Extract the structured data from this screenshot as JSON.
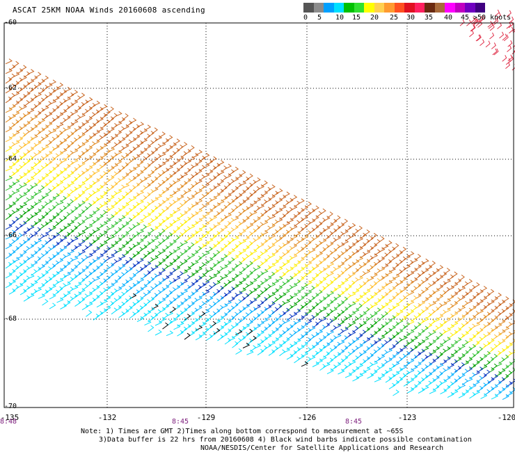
{
  "title": "ASCAT 25KM NOAA Winds 20160608 ascending",
  "colorbar": {
    "colors": [
      "#555555",
      "#8c8c8c",
      "#00a0ff",
      "#00e0ff",
      "#00c000",
      "#30e030",
      "#ffff00",
      "#ffd050",
      "#ff9a30",
      "#ff5020",
      "#e01020",
      "#ff2060",
      "#6a2a10",
      "#a86a3a",
      "#ff00ff",
      "#c000c0",
      "#7000c0",
      "#400080"
    ],
    "labels": [
      "0",
      "5",
      "10",
      "15",
      "20",
      "25",
      "30",
      "35",
      "40",
      "45",
      ">50 knots"
    ]
  },
  "lat_labels": [
    "-60",
    "-62",
    "-64",
    "-66",
    "-68",
    "-70"
  ],
  "lon_labels": [
    "-135",
    "-132",
    "-129",
    "-126",
    "-123",
    "-120"
  ],
  "time_labels": [
    "8:48",
    "8:45",
    "8:45"
  ],
  "note": {
    "line1": "Note: 1) Times are GMT 2)Times along bottom correspond to measurement at ~65S",
    "line2": "3)Data buffer is 22 hrs from 20160608 4) Black wind barbs indicate possible contamination",
    "line3": "NOAA/NESDIS/Center for Satellite Applications and Research"
  }
}
